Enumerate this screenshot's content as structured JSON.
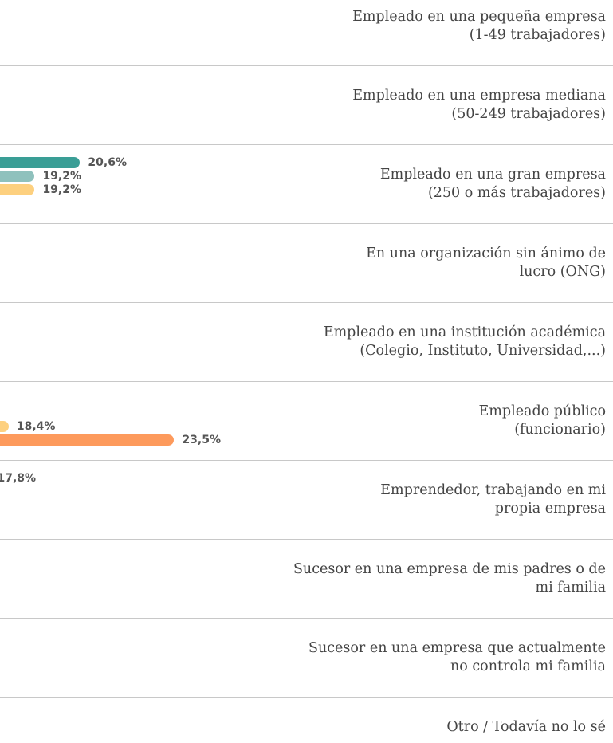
{
  "chart_data": {
    "type": "bar",
    "orientation": "horizontal",
    "categories": [
      "Empleado en una pequeña empresa\n(1-49 trabajadores)",
      "Empleado en una empresa mediana\n(50-249 trabajadores)",
      "Empleado en una gran empresa\n(250 o más trabajadores)",
      "En una organización sin ánimo de\nlucro (ONG)",
      "Empleado en una institución académica\n(Colegio, Instituto, Universidad,...)",
      "Empleado público\n(funcionario)",
      "Emprendedor, trabajando en mi\npropia empresa",
      "Sucesor en una empresa de mis padres o de\nmi familia",
      "Sucesor en una empresa que actualmente\nno controla mi familia",
      "Otro / Todavía no lo sé"
    ],
    "series": [
      {
        "color": "#3a9e96",
        "values": [
          null,
          null,
          20.6,
          null,
          null,
          null,
          17.8,
          null,
          null,
          null
        ],
        "value_labels": [
          null,
          null,
          "20,6%",
          null,
          null,
          null,
          "17,8%",
          null,
          null,
          null
        ]
      },
      {
        "color": "#8fc1bd",
        "values": [
          null,
          null,
          19.2,
          null,
          null,
          null,
          null,
          null,
          null,
          null
        ],
        "value_labels": [
          null,
          null,
          "19,2%",
          null,
          null,
          null,
          null,
          null,
          null,
          null
        ]
      },
      {
        "color": "#fdd07f",
        "values": [
          null,
          null,
          19.2,
          null,
          null,
          18.4,
          null,
          null,
          null,
          null
        ],
        "value_labels": [
          null,
          null,
          "19,2%",
          null,
          null,
          "18,4%",
          null,
          null,
          null,
          null
        ]
      },
      {
        "color": "#fd9a5c",
        "values": [
          null,
          null,
          null,
          null,
          null,
          23.5,
          null,
          null,
          null,
          null
        ],
        "value_labels": [
          null,
          null,
          null,
          null,
          null,
          "23,5%",
          null,
          null,
          null,
          null
        ]
      }
    ],
    "xlim": [
      0,
      30
    ]
  }
}
